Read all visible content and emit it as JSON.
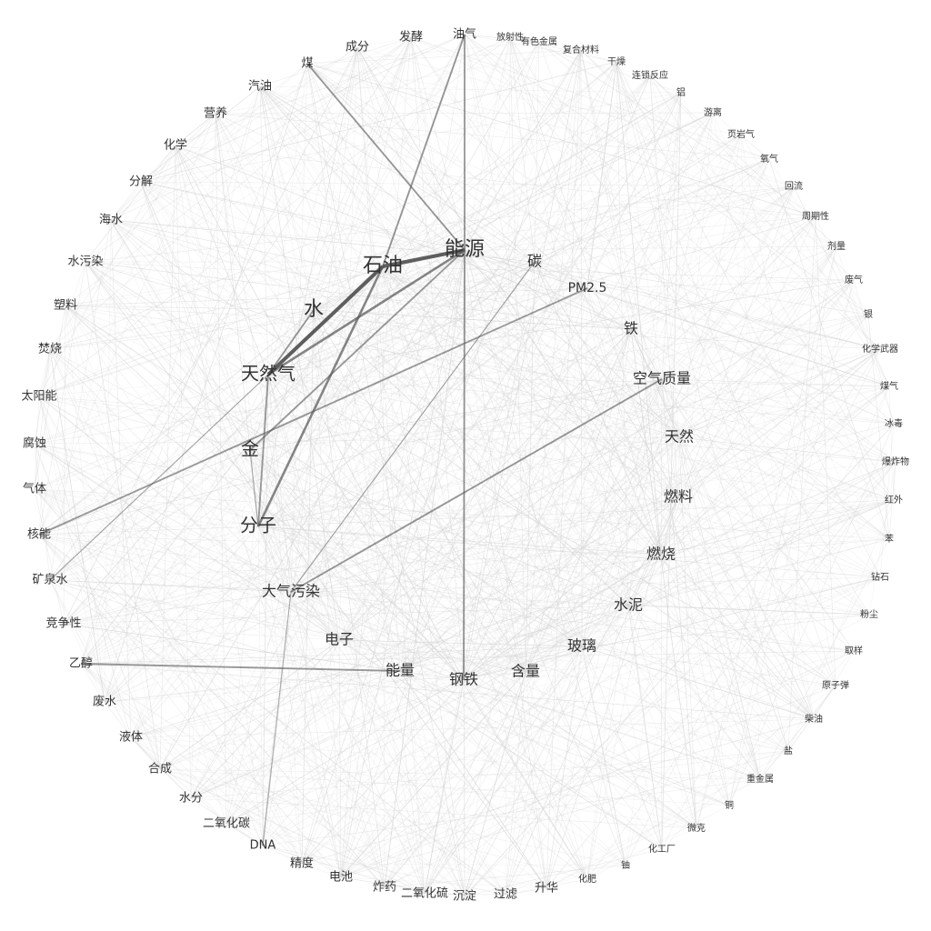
{
  "diagram": {
    "type": "co-occurrence network (circular layout)",
    "colors": {
      "background": "#ffffff",
      "label": "#333333",
      "edge_light": "#d6d6d6",
      "edge_dark": "#555555"
    },
    "inner_nodes": [
      {
        "label": "能源",
        "weight": 5
      },
      {
        "label": "石油",
        "weight": 5
      },
      {
        "label": "水",
        "weight": 5
      },
      {
        "label": "天然气",
        "weight": 4
      },
      {
        "label": "金",
        "weight": 4
      },
      {
        "label": "分子",
        "weight": 4
      },
      {
        "label": "大气污染",
        "weight": 3
      },
      {
        "label": "电子",
        "weight": 3
      },
      {
        "label": "能量",
        "weight": 3
      },
      {
        "label": "钢铁",
        "weight": 3
      },
      {
        "label": "含量",
        "weight": 3
      },
      {
        "label": "玻璃",
        "weight": 3
      },
      {
        "label": "水泥",
        "weight": 3
      },
      {
        "label": "燃烧",
        "weight": 3
      },
      {
        "label": "燃料",
        "weight": 3
      },
      {
        "label": "天然",
        "weight": 3
      },
      {
        "label": "空气质量",
        "weight": 3
      },
      {
        "label": "铁",
        "weight": 3
      },
      {
        "label": "PM2.5",
        "weight": 2
      },
      {
        "label": "碳",
        "weight": 3
      }
    ],
    "outer_nodes": [
      {
        "label": "油气",
        "weight": 2
      },
      {
        "label": "放射性",
        "weight": 1
      },
      {
        "label": "有色金属",
        "weight": 1
      },
      {
        "label": "复合材料",
        "weight": 1
      },
      {
        "label": "干燥",
        "weight": 1
      },
      {
        "label": "连锁反应",
        "weight": 1
      },
      {
        "label": "铝",
        "weight": 1
      },
      {
        "label": "游离",
        "weight": 1
      },
      {
        "label": "页岩气",
        "weight": 1
      },
      {
        "label": "氧气",
        "weight": 1
      },
      {
        "label": "回流",
        "weight": 1
      },
      {
        "label": "周期性",
        "weight": 1
      },
      {
        "label": "剂量",
        "weight": 1
      },
      {
        "label": "废气",
        "weight": 1
      },
      {
        "label": "银",
        "weight": 1
      },
      {
        "label": "化学武器",
        "weight": 1
      },
      {
        "label": "煤气",
        "weight": 1
      },
      {
        "label": "冰毒",
        "weight": 1
      },
      {
        "label": "爆炸物",
        "weight": 1
      },
      {
        "label": "红外",
        "weight": 1
      },
      {
        "label": "苯",
        "weight": 1
      },
      {
        "label": "钻石",
        "weight": 1
      },
      {
        "label": "粉尘",
        "weight": 1
      },
      {
        "label": "取样",
        "weight": 1
      },
      {
        "label": "原子弹",
        "weight": 1
      },
      {
        "label": "柴油",
        "weight": 1
      },
      {
        "label": "盐",
        "weight": 1
      },
      {
        "label": "重金属",
        "weight": 1
      },
      {
        "label": "铜",
        "weight": 1
      },
      {
        "label": "微克",
        "weight": 1
      },
      {
        "label": "化工厂",
        "weight": 1
      },
      {
        "label": "铀",
        "weight": 1
      },
      {
        "label": "化肥",
        "weight": 1
      },
      {
        "label": "升华",
        "weight": 2
      },
      {
        "label": "过滤",
        "weight": 2
      },
      {
        "label": "沉淀",
        "weight": 2
      },
      {
        "label": "二氧化硫",
        "weight": 2
      },
      {
        "label": "炸药",
        "weight": 2
      },
      {
        "label": "电池",
        "weight": 2
      },
      {
        "label": "精度",
        "weight": 2
      },
      {
        "label": "DNA",
        "weight": 2
      },
      {
        "label": "二氧化碳",
        "weight": 2
      },
      {
        "label": "水分",
        "weight": 2
      },
      {
        "label": "合成",
        "weight": 2
      },
      {
        "label": "液体",
        "weight": 2
      },
      {
        "label": "废水",
        "weight": 2
      },
      {
        "label": "乙醇",
        "weight": 2
      },
      {
        "label": "竞争性",
        "weight": 2
      },
      {
        "label": "矿泉水",
        "weight": 2
      },
      {
        "label": "核能",
        "weight": 2
      },
      {
        "label": "气体",
        "weight": 2
      },
      {
        "label": "腐蚀",
        "weight": 2
      },
      {
        "label": "太阳能",
        "weight": 2
      },
      {
        "label": "焚烧",
        "weight": 2
      },
      {
        "label": "塑料",
        "weight": 2
      },
      {
        "label": "水污染",
        "weight": 2
      },
      {
        "label": "海水",
        "weight": 2
      },
      {
        "label": "分解",
        "weight": 2
      },
      {
        "label": "化学",
        "weight": 2
      },
      {
        "label": "营养",
        "weight": 2
      },
      {
        "label": "汽油",
        "weight": 2
      },
      {
        "label": "煤",
        "weight": 2
      },
      {
        "label": "成分",
        "weight": 2
      },
      {
        "label": "发酵",
        "weight": 2
      }
    ],
    "strong_edges": [
      {
        "source": "石油",
        "target": "能源",
        "strength": 5
      },
      {
        "source": "石油",
        "target": "天然气",
        "strength": 5
      },
      {
        "source": "水",
        "target": "天然气",
        "strength": 2
      },
      {
        "source": "天然气",
        "target": "能源",
        "strength": 3
      },
      {
        "source": "石油",
        "target": "分子",
        "strength": 3
      },
      {
        "source": "金",
        "target": "能源",
        "strength": 2
      },
      {
        "source": "能源",
        "target": "油气",
        "strength": 2
      },
      {
        "source": "石油",
        "target": "油气",
        "strength": 2
      },
      {
        "source": "能源",
        "target": "煤",
        "strength": 2
      },
      {
        "source": "天然气",
        "target": "分子",
        "strength": 2
      },
      {
        "source": "能源",
        "target": "钢铁",
        "strength": 2
      },
      {
        "source": "PM2.5",
        "target": "核能",
        "strength": 2
      },
      {
        "source": "空气质量",
        "target": "大气污染",
        "strength": 2
      },
      {
        "source": "能量",
        "target": "乙醇",
        "strength": 2
      },
      {
        "source": "碳",
        "target": "大气污染",
        "strength": 1
      },
      {
        "source": "天然气",
        "target": "矿泉水",
        "strength": 1
      },
      {
        "source": "金",
        "target": "分子",
        "strength": 1
      },
      {
        "source": "大气污染",
        "target": "DNA",
        "strength": 1
      }
    ]
  }
}
